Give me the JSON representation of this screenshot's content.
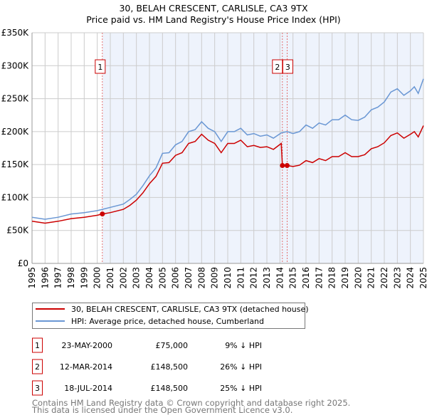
{
  "chart_data": {
    "type": "line",
    "title": "30, BELAH CRESCENT, CARLISLE, CA3 9TX",
    "subtitle": "Price paid vs. HM Land Registry's House Price Index (HPI)",
    "xlim": [
      1995,
      2025
    ],
    "ylim": [
      0,
      350000
    ],
    "x_ticks": [
      "1995",
      "1996",
      "1997",
      "1998",
      "1999",
      "2000",
      "2001",
      "2002",
      "2003",
      "2004",
      "2005",
      "2006",
      "2007",
      "2008",
      "2009",
      "2010",
      "2011",
      "2012",
      "2013",
      "2014",
      "2015",
      "2016",
      "2017",
      "2018",
      "2019",
      "2020",
      "2021",
      "2022",
      "2023",
      "2024",
      "2025"
    ],
    "y_ticks": [
      {
        "v": 0,
        "label": "£0"
      },
      {
        "v": 50000,
        "label": "£50K"
      },
      {
        "v": 100000,
        "label": "£100K"
      },
      {
        "v": 150000,
        "label": "£150K"
      },
      {
        "v": 200000,
        "label": "£200K"
      },
      {
        "v": 250000,
        "label": "£250K"
      },
      {
        "v": 300000,
        "label": "£300K"
      },
      {
        "v": 350000,
        "label": "£350K"
      }
    ],
    "grid": true,
    "series": [
      {
        "name": "30, BELAH CRESCENT, CARLISLE, CA3 9TX (detached house)",
        "color": "#cc0000",
        "x": [
          1995,
          1996,
          1997,
          1998,
          1999,
          2000,
          2000.39,
          2001,
          2002,
          2002.5,
          2003,
          2003.5,
          2004,
          2004.5,
          2005,
          2005.5,
          2006,
          2006.5,
          2007,
          2007.5,
          2008,
          2008.5,
          2009,
          2009.5,
          2010,
          2010.5,
          2011,
          2011.5,
          2012,
          2012.5,
          2013,
          2013.5,
          2014.1,
          2014.19,
          2014.55,
          2015,
          2015.5,
          2016,
          2016.5,
          2017,
          2017.5,
          2018,
          2018.5,
          2019,
          2019.5,
          2020,
          2020.5,
          2021,
          2021.5,
          2022,
          2022.5,
          2023,
          2023.5,
          2024,
          2024.3,
          2024.6,
          2025
        ],
        "y": [
          64000,
          61000,
          64000,
          68000,
          70000,
          73000,
          75000,
          77000,
          82000,
          88000,
          96000,
          107000,
          121000,
          132000,
          152000,
          153000,
          164000,
          168000,
          182000,
          185000,
          196000,
          187000,
          182000,
          168000,
          182000,
          182000,
          187000,
          177000,
          179000,
          176000,
          177000,
          173000,
          182000,
          148500,
          148500,
          147000,
          149000,
          156000,
          153000,
          159000,
          156000,
          162000,
          162000,
          168000,
          162000,
          162000,
          165000,
          174000,
          177000,
          183000,
          194000,
          198000,
          190000,
          196000,
          200000,
          192000,
          209000
        ]
      },
      {
        "name": "HPI: Average price, detached house, Cumberland",
        "color": "#6a97d4",
        "x": [
          1995,
          1996,
          1997,
          1998,
          1999,
          2000,
          2000.39,
          2001,
          2002,
          2002.5,
          2003,
          2003.5,
          2004,
          2004.5,
          2005,
          2005.5,
          2006,
          2006.5,
          2007,
          2007.5,
          2008,
          2008.5,
          2009,
          2009.5,
          2010,
          2010.5,
          2011,
          2011.5,
          2012,
          2012.5,
          2013,
          2013.5,
          2014.1,
          2014.55,
          2015,
          2015.5,
          2016,
          2016.5,
          2017,
          2017.5,
          2018,
          2018.5,
          2019,
          2019.5,
          2020,
          2020.5,
          2021,
          2021.5,
          2022,
          2022.5,
          2023,
          2023.5,
          2024,
          2024.3,
          2024.6,
          2025
        ],
        "y": [
          70000,
          67000,
          70000,
          75000,
          77000,
          80000,
          82000,
          85000,
          90000,
          97000,
          105000,
          118000,
          133000,
          145000,
          167000,
          168000,
          180000,
          185000,
          200000,
          203000,
          215000,
          205000,
          200000,
          185000,
          200000,
          200000,
          205000,
          195000,
          197000,
          193000,
          195000,
          190000,
          198000,
          200000,
          197000,
          200000,
          210000,
          205000,
          213000,
          210000,
          218000,
          218000,
          225000,
          218000,
          217000,
          222000,
          233000,
          237000,
          245000,
          260000,
          265000,
          255000,
          262000,
          268000,
          258000,
          280000
        ]
      }
    ],
    "sales": [
      {
        "id": "1",
        "x": 2000.39,
        "price": 75000,
        "date": "23-MAY-2000",
        "price_label": "£75,000",
        "hpi": "9% ↓ HPI"
      },
      {
        "id": "2",
        "x": 2014.19,
        "price": 148500,
        "date": "12-MAR-2014",
        "price_label": "£148,500",
        "hpi": "26% ↓ HPI"
      },
      {
        "id": "3",
        "x": 2014.55,
        "price": 148500,
        "date": "18-JUL-2014",
        "price_label": "£148,500",
        "hpi": "25% ↓ HPI"
      }
    ],
    "legend_placement": "below"
  },
  "footer": [
    "Contains HM Land Registry data © Crown copyright and database right 2025.",
    "This data is licensed under the Open Government Licence v3.0."
  ]
}
